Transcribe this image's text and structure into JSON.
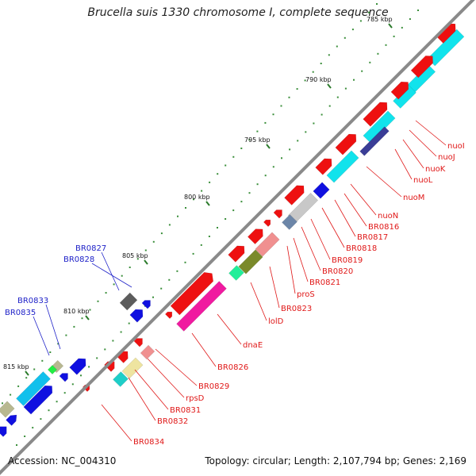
{
  "map": {
    "title": "Brucella suis 1330 chromosome I, complete sequence",
    "accession": "Accession: NC_004310",
    "summary": "Topology: circular; Length: 2,107,794 bp; Genes: 2,169",
    "colors": {
      "backbone": "#8a8a8a",
      "label_plus": "#1f22c8",
      "label_minus": "#e01818",
      "tick": "#2a7a2a"
    },
    "ticks": [
      {
        "label": "785 kbp"
      },
      {
        "label": "790 kbp"
      },
      {
        "label": "795 kbp"
      },
      {
        "label": "800 kbp"
      },
      {
        "label": "805 kbp"
      },
      {
        "label": "810 kbp"
      },
      {
        "label": "815 kbp"
      }
    ],
    "genes_plus": [
      {
        "label": "BR0827"
      },
      {
        "label": "BR0828"
      },
      {
        "label": "BR0833"
      },
      {
        "label": "BR0835"
      }
    ],
    "genes_minus": [
      {
        "label": "nuoI"
      },
      {
        "label": "nuoJ"
      },
      {
        "label": "nuoK"
      },
      {
        "label": "nuoL"
      },
      {
        "label": "nuoM"
      },
      {
        "label": "nuoN"
      },
      {
        "label": "BR0816"
      },
      {
        "label": "BR0817"
      },
      {
        "label": "BR0818"
      },
      {
        "label": "BR0819"
      },
      {
        "label": "BR0820"
      },
      {
        "label": "BR0821"
      },
      {
        "label": "proS"
      },
      {
        "label": "BR0823"
      },
      {
        "label": "lolD"
      },
      {
        "label": "dnaE"
      },
      {
        "label": "BR0826"
      },
      {
        "label": "BR0829"
      },
      {
        "label": "rpsD"
      },
      {
        "label": "BR0831"
      },
      {
        "label": "BR0832"
      },
      {
        "label": "BR0834"
      }
    ]
  }
}
